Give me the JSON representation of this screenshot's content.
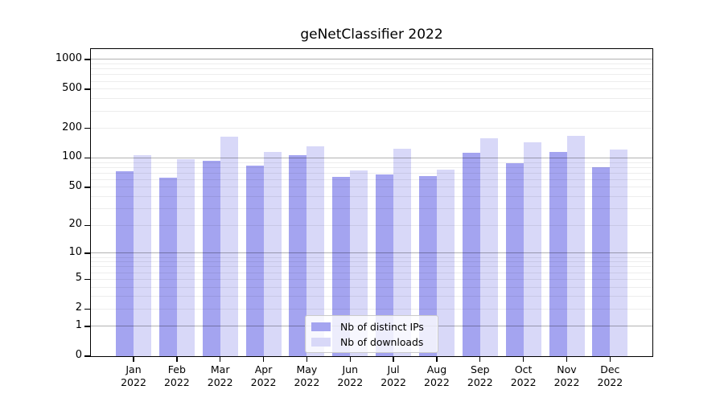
{
  "chart_data": {
    "type": "bar",
    "title": "geNetClassifier 2022",
    "categories": [
      "Jan",
      "Feb",
      "Mar",
      "Apr",
      "May",
      "Jun",
      "Jul",
      "Aug",
      "Sep",
      "Oct",
      "Nov",
      "Dec"
    ],
    "year_label": "2022",
    "series": [
      {
        "name": "Nb of distinct IPs",
        "color": "#a4a4f0",
        "values": [
          73,
          63,
          94,
          84,
          106,
          64,
          68,
          65,
          113,
          88,
          116,
          81
        ]
      },
      {
        "name": "Nb of downloads",
        "color": "#d8d8f8",
        "values": [
          107,
          98,
          166,
          115,
          131,
          74,
          124,
          76,
          159,
          145,
          169,
          122
        ]
      }
    ],
    "yscale": "log10(value+1)",
    "yticks": [
      0,
      1,
      2,
      5,
      10,
      20,
      50,
      100,
      200,
      500,
      1000
    ],
    "ylim": [
      0,
      1275
    ],
    "grid": "both",
    "grid_major_color": "rgba(0,0,0,0.30)",
    "grid_minor_color": "rgba(0,0,0,0.07)",
    "axis_color": "#000000",
    "legend_position": "lower center"
  }
}
